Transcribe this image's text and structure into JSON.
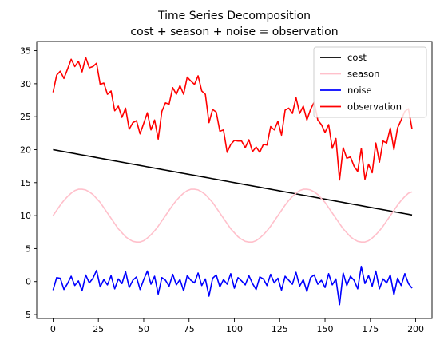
{
  "chart_data": {
    "type": "line",
    "title": "Time Series Decomposition",
    "subtitle": "cost + season + noise = observation",
    "xlabel": "",
    "ylabel": "",
    "xlim": [
      -9,
      209
    ],
    "ylim": [
      -5.6,
      36.4
    ],
    "x_ticks": [
      0,
      25,
      50,
      75,
      100,
      125,
      150,
      175,
      200
    ],
    "y_ticks": [
      -5,
      0,
      5,
      10,
      15,
      20,
      25,
      30,
      35
    ],
    "grid": false,
    "legend_position": "top-right",
    "x": [
      0,
      2,
      4,
      6,
      8,
      10,
      12,
      14,
      16,
      18,
      20,
      22,
      24,
      26,
      28,
      30,
      32,
      34,
      36,
      38,
      40,
      42,
      44,
      46,
      48,
      50,
      52,
      54,
      56,
      58,
      60,
      62,
      64,
      66,
      68,
      70,
      72,
      74,
      76,
      78,
      80,
      82,
      84,
      86,
      88,
      90,
      92,
      94,
      96,
      98,
      100,
      102,
      104,
      106,
      108,
      110,
      112,
      114,
      116,
      118,
      120,
      122,
      124,
      126,
      128,
      130,
      132,
      134,
      136,
      138,
      140,
      142,
      144,
      146,
      148,
      150,
      152,
      154,
      156,
      158,
      160,
      162,
      164,
      166,
      168,
      170,
      172,
      174,
      176,
      178,
      180,
      182,
      184,
      186,
      188,
      190,
      192,
      194,
      196,
      198
    ],
    "series": [
      {
        "name": "cost",
        "color": "#000000",
        "values": [
          20.0,
          19.9,
          19.8,
          19.7,
          19.6,
          19.5,
          19.4,
          19.3,
          19.2,
          19.1,
          19.0,
          18.9,
          18.8,
          18.7,
          18.6,
          18.5,
          18.4,
          18.3,
          18.2,
          18.1,
          18.0,
          17.9,
          17.8,
          17.7,
          17.6,
          17.5,
          17.4,
          17.3,
          17.2,
          17.1,
          17.0,
          16.9,
          16.8,
          16.7,
          16.6,
          16.5,
          16.4,
          16.3,
          16.2,
          16.1,
          16.0,
          15.9,
          15.8,
          15.7,
          15.6,
          15.5,
          15.4,
          15.3,
          15.2,
          15.1,
          15.0,
          14.9,
          14.8,
          14.7,
          14.6,
          14.5,
          14.4,
          14.3,
          14.2,
          14.1,
          14.0,
          13.9,
          13.8,
          13.7,
          13.6,
          13.5,
          13.4,
          13.3,
          13.2,
          13.1,
          13.0,
          12.9,
          12.8,
          12.7,
          12.6,
          12.5,
          12.4,
          12.3,
          12.2,
          12.1,
          12.0,
          11.9,
          11.8,
          11.7,
          11.6,
          11.5,
          11.4,
          11.3,
          11.2,
          11.1,
          11.0,
          10.9,
          10.8,
          10.7,
          10.6,
          10.5,
          10.4,
          10.3,
          10.2,
          10.1
        ]
      },
      {
        "name": "season",
        "color": "#ffc0cb",
        "values": [
          10.0,
          10.8,
          11.6,
          12.3,
          12.9,
          13.4,
          13.8,
          14.0,
          14.0,
          13.9,
          13.6,
          13.2,
          12.6,
          12.0,
          11.2,
          10.4,
          9.6,
          8.8,
          8.0,
          7.4,
          6.8,
          6.4,
          6.1,
          6.0,
          6.0,
          6.2,
          6.6,
          7.1,
          7.7,
          8.4,
          9.2,
          10.0,
          10.8,
          11.6,
          12.3,
          12.9,
          13.4,
          13.8,
          14.0,
          14.0,
          13.9,
          13.6,
          13.2,
          12.6,
          12.0,
          11.2,
          10.4,
          9.6,
          8.8,
          8.0,
          7.4,
          6.8,
          6.4,
          6.1,
          6.0,
          6.0,
          6.2,
          6.6,
          7.1,
          7.7,
          8.4,
          9.2,
          10.0,
          10.8,
          11.6,
          12.3,
          12.9,
          13.4,
          13.8,
          14.0,
          14.0,
          13.9,
          13.6,
          13.2,
          12.6,
          12.0,
          11.2,
          10.4,
          9.6,
          8.8,
          8.0,
          7.4,
          6.8,
          6.4,
          6.1,
          6.0,
          6.0,
          6.2,
          6.6,
          7.1,
          7.7,
          8.4,
          9.2,
          10.0,
          10.8,
          11.6,
          12.3,
          12.9,
          13.4,
          13.6
        ]
      },
      {
        "name": "noise",
        "color": "#0000ff",
        "values": [
          -1.3,
          0.6,
          0.5,
          -1.2,
          -0.3,
          0.8,
          -0.6,
          0.1,
          -1.4,
          1.0,
          -0.2,
          0.5,
          1.7,
          -0.8,
          0.3,
          -0.5,
          0.9,
          -1.1,
          0.4,
          -0.3,
          1.5,
          -0.9,
          0.2,
          0.7,
          -1.2,
          0.3,
          1.6,
          -0.4,
          0.8,
          -1.9,
          0.6,
          0.2,
          -0.7,
          1.1,
          -0.5,
          0.3,
          -1.4,
          0.9,
          0.2,
          -0.2,
          1.3,
          -0.6,
          0.4,
          -2.2,
          0.5,
          1.0,
          -0.8,
          0.3,
          -0.4,
          1.2,
          -1.0,
          0.6,
          0.1,
          -0.5,
          0.9,
          -0.3,
          -1.2,
          0.7,
          0.4,
          -0.6,
          1.1,
          -0.2,
          0.5,
          -1.3,
          0.8,
          0.2,
          -0.4,
          1.4,
          -0.7,
          0.3,
          -1.5,
          0.6,
          1.0,
          -0.4,
          0.2,
          -0.9,
          1.2,
          -0.5,
          0.4,
          -3.5,
          1.3,
          -0.6,
          0.8,
          0.2,
          -1.1,
          2.3,
          -0.3,
          0.9,
          -0.7,
          1.6,
          -1.1,
          0.4,
          -0.2,
          1.0,
          -2.0,
          0.5,
          -0.6,
          1.2,
          -0.3,
          -1.0
        ]
      },
      {
        "name": "observation",
        "color": "#ff0000",
        "values": [
          28.7,
          31.3,
          31.9,
          30.8,
          32.2,
          33.7,
          32.6,
          33.4,
          31.8,
          34.0,
          32.4,
          32.6,
          33.1,
          29.9,
          30.1,
          28.4,
          28.9,
          25.9,
          26.6,
          24.9,
          26.3,
          23.1,
          24.1,
          24.4,
          22.4,
          24.0,
          25.6,
          23.0,
          24.5,
          21.6,
          25.8,
          27.1,
          26.9,
          29.4,
          28.4,
          29.7,
          28.4,
          31.0,
          30.4,
          29.9,
          31.2,
          28.9,
          28.4,
          24.1,
          26.1,
          25.7,
          22.8,
          23.0,
          19.6,
          20.8,
          21.4,
          21.3,
          21.3,
          20.3,
          21.5,
          19.7,
          20.4,
          19.6,
          20.8,
          20.7,
          23.5,
          23.0,
          24.3,
          22.2,
          26.0,
          26.3,
          25.5,
          27.9,
          25.5,
          26.6,
          24.5,
          26.1,
          27.2,
          24.5,
          23.8,
          22.6,
          23.8,
          20.2,
          21.7,
          15.4,
          20.3,
          18.7,
          18.9,
          17.5,
          16.7,
          20.2,
          15.5,
          17.8,
          16.5,
          21.0,
          18.1,
          21.3,
          21.0,
          23.3,
          20.0,
          23.3,
          24.5,
          25.8,
          26.2,
          23.1
        ]
      }
    ]
  }
}
